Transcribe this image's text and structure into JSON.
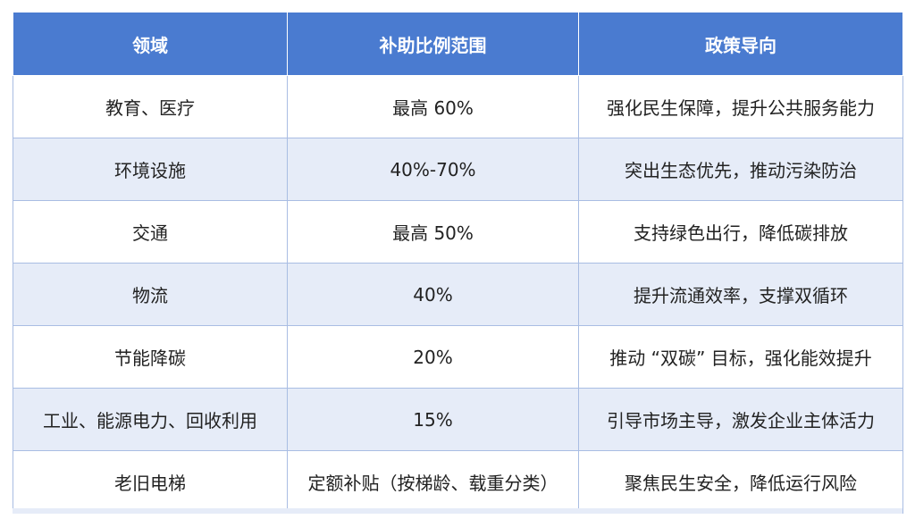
{
  "headers": [
    "领域",
    "补助比例范围",
    "政策导向"
  ],
  "rows": [
    {
      "field": "教育、医疗",
      "ratio": "最高 60%",
      "direction": "强化民生保障，提升公共服务能力"
    },
    {
      "field": "环境设施",
      "ratio": "40%-70%",
      "direction": "突出生态优先，推动污染防治"
    },
    {
      "field": "交通",
      "ratio": "最高 50%",
      "direction": "支持绿色出行，降低碳排放"
    },
    {
      "field": "物流",
      "ratio": "40%",
      "direction": "提升流通效率，支撑双循环"
    },
    {
      "field": "节能降碳",
      "ratio": "20%",
      "direction": "推动 “双碳” 目标，强化能效提升"
    },
    {
      "field": "工业、能源电力、回收利用",
      "ratio": "15%",
      "direction": "引导市场主导，激发企业主体活力"
    },
    {
      "field": "老旧电梯",
      "ratio": "定额补贴（按梯龄、载重分类）",
      "direction": "聚焦民生安全，降低运行风险"
    }
  ],
  "colors": {
    "header_bg": "#4a7bd0",
    "header_text": "#ffffff",
    "row_alt_bg": "#e6ecf8",
    "border": "#a9bde3"
  }
}
